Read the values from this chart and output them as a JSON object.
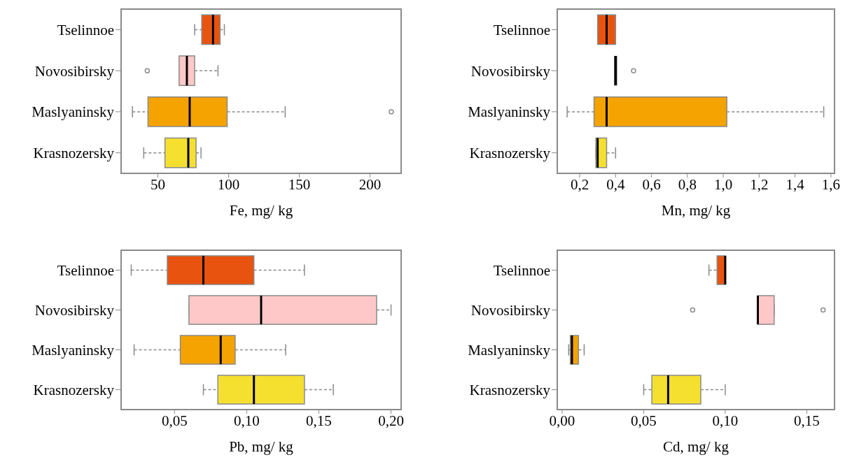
{
  "chart_data": [
    {
      "type": "box",
      "orientation": "horizontal",
      "xlabel": "Fe, mg/ kg",
      "categories": [
        "Tselinnoe",
        "Novosibirsky",
        "Maslyaninsky",
        "Krasnozersky"
      ],
      "colors": [
        "#e8530f",
        "#ffc8c8",
        "#f5a300",
        "#f5e030"
      ],
      "xlim": [
        24,
        222
      ],
      "xticks": [
        50,
        100,
        150,
        200
      ],
      "boxes": [
        {
          "low": 76,
          "q1": 81,
          "median": 89,
          "q3": 94,
          "high": 97
        },
        {
          "low": 65,
          "q1": 65,
          "median": 70.5,
          "q3": 76,
          "high": 92.5,
          "outliers": [
            42.5
          ]
        },
        {
          "low": 32,
          "q1": 43,
          "median": 72.5,
          "q3": 99,
          "high": 140,
          "outliers": [
            215
          ]
        },
        {
          "low": 40,
          "q1": 55,
          "median": 71.5,
          "q3": 77,
          "high": 80.5
        }
      ]
    },
    {
      "type": "box",
      "orientation": "horizontal",
      "xlabel": "Mn, mg/ kg",
      "categories": [
        "Tselinnoe",
        "Novosibirsky",
        "Maslyaninsky",
        "Krasnozersky"
      ],
      "colors": [
        "#e8530f",
        "#000000",
        "#f5a300",
        "#f5e030"
      ],
      "xlim": [
        0.075,
        1.62
      ],
      "xticks": [
        {
          "value": 0.2,
          "label": "0,2"
        },
        {
          "value": 0.4,
          "label": "0,4"
        },
        {
          "value": 0.6,
          "label": "0,6"
        },
        {
          "value": 0.8,
          "label": "0,8"
        },
        {
          "value": 1.0,
          "label": "1,0"
        },
        {
          "value": 1.2,
          "label": "1,2"
        },
        {
          "value": 1.4,
          "label": "1,4"
        },
        {
          "value": 1.6,
          "label": "1,6"
        }
      ],
      "boxes": [
        {
          "low": 0.3,
          "q1": 0.3,
          "median": 0.35,
          "q3": 0.4,
          "high": 0.4
        },
        {
          "low": 0.4,
          "q1": 0.4,
          "median": 0.4,
          "q3": 0.4,
          "high": 0.4,
          "outliers": [
            0.5
          ]
        },
        {
          "low": 0.13,
          "q1": 0.28,
          "median": 0.35,
          "q3": 1.02,
          "high": 1.56
        },
        {
          "low": 0.29,
          "q1": 0.29,
          "median": 0.3,
          "q3": 0.35,
          "high": 0.4
        }
      ]
    },
    {
      "type": "box",
      "orientation": "horizontal",
      "xlabel": "Pb, mg/ kg",
      "categories": [
        "Tselinnoe",
        "Novosibirsky",
        "Maslyaninsky",
        "Krasnozersky"
      ],
      "colors": [
        "#e8530f",
        "#ffc8c8",
        "#f5a300",
        "#f5e030"
      ],
      "xlim": [
        0.013,
        0.207
      ],
      "xticks": [
        {
          "value": 0.05,
          "label": "0,05"
        },
        {
          "value": 0.1,
          "label": "0,10"
        },
        {
          "value": 0.15,
          "label": "0,15"
        },
        {
          "value": 0.2,
          "label": "0,20"
        }
      ],
      "boxes": [
        {
          "low": 0.02,
          "q1": 0.045,
          "median": 0.07,
          "q3": 0.105,
          "high": 0.14
        },
        {
          "low": 0.06,
          "q1": 0.06,
          "median": 0.11,
          "q3": 0.19,
          "high": 0.2
        },
        {
          "low": 0.022,
          "q1": 0.054,
          "median": 0.082,
          "q3": 0.092,
          "high": 0.127
        },
        {
          "low": 0.07,
          "q1": 0.08,
          "median": 0.105,
          "q3": 0.14,
          "high": 0.16
        }
      ]
    },
    {
      "type": "box",
      "orientation": "horizontal",
      "xlabel": "Cd, mg/ kg",
      "categories": [
        "Tselinnoe",
        "Novosibirsky",
        "Maslyaninsky",
        "Krasnozersky"
      ],
      "colors": [
        "#e8530f",
        "#ffc8c8",
        "#f5a300",
        "#f5e030"
      ],
      "xlim": [
        -0.003,
        0.167
      ],
      "xticks": [
        {
          "value": 0,
          "label": "0,00"
        },
        {
          "value": 0.05,
          "label": "0,05"
        },
        {
          "value": 0.1,
          "label": "0,10"
        },
        {
          "value": 0.15,
          "label": "0,15"
        }
      ],
      "boxes": [
        {
          "low": 0.09,
          "q1": 0.095,
          "median": 0.1,
          "q3": 0.1,
          "high": 0.1
        },
        {
          "low": 0.12,
          "q1": 0.12,
          "median": 0.12,
          "q3": 0.13,
          "high": 0.13,
          "outliers": [
            0.08,
            0.16
          ]
        },
        {
          "low": 0.004,
          "q1": 0.005,
          "median": 0.006,
          "q3": 0.01,
          "high": 0.0135
        },
        {
          "low": 0.05,
          "q1": 0.055,
          "median": 0.065,
          "q3": 0.085,
          "high": 0.1
        }
      ]
    }
  ]
}
